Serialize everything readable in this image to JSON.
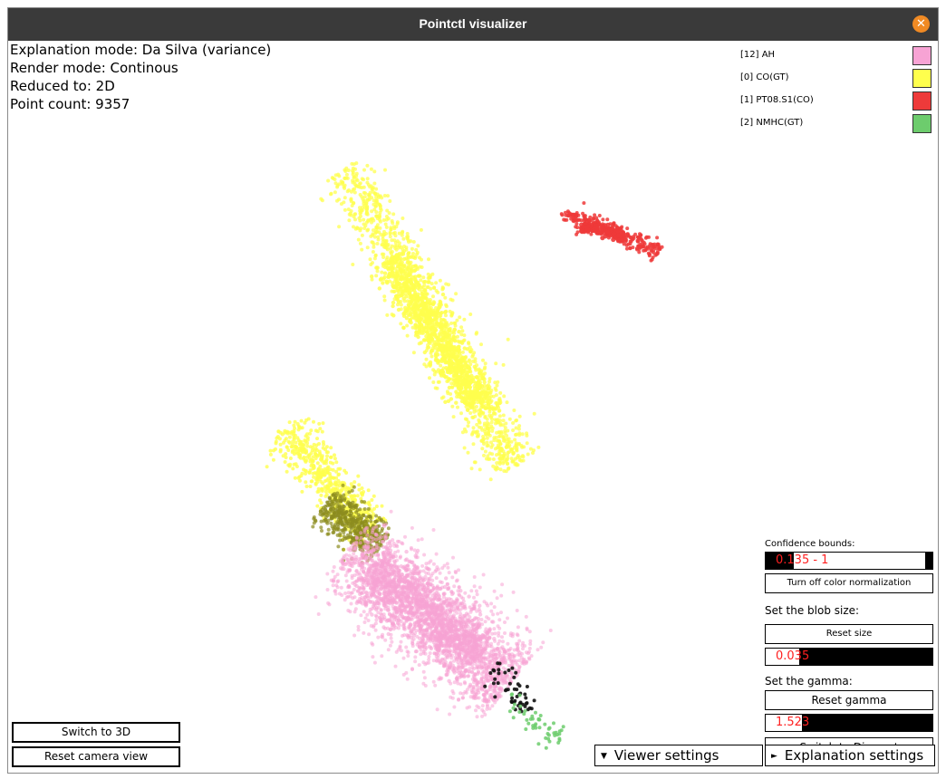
{
  "window": {
    "title": "Pointctl visualizer",
    "close_glyph": "✕"
  },
  "info": {
    "explanation_mode": "Explanation mode: Da Silva (variance)",
    "render_mode": "Render mode: Continous",
    "reduced_to": "Reduced to: 2D",
    "point_count": "Point count: 9357"
  },
  "legend": [
    {
      "label": "[12] AH",
      "color": "#f7a3d4"
    },
    {
      "label": "[0] CO(GT)",
      "color": "#ffff4d"
    },
    {
      "label": "[1] PT08.S1(CO)",
      "color": "#ee3a3a"
    },
    {
      "label": "[2] NMHC(GT)",
      "color": "#6dcc6d"
    }
  ],
  "panel": {
    "confidence_label": "Confidence bounds:",
    "confidence_value": "0.135 - 1",
    "confidence_range": [
      0.135,
      1
    ],
    "color_norm_button": "Turn off color normalization",
    "blob_label": "Set the blob size:",
    "reset_size_button": "Reset size",
    "blob_value": "0.035",
    "blob_fill": 0.2,
    "gamma_label": "Set the gamma:",
    "reset_gamma_button": "Reset gamma",
    "gamma_value": "1.523",
    "gamma_fill": 0.22,
    "switch_discreet_button": "Switch to Discreet"
  },
  "bottom": {
    "switch_3d": "Switch to 3D",
    "reset_camera": "Reset camera view",
    "viewer_settings": "Viewer settings",
    "explanation_settings": "Explanation settings",
    "viewer_icon": "triangle-down-icon",
    "explanation_icon": "triangle-right-icon"
  },
  "colors": {
    "yellow": "#ffff4d",
    "olive": "#8c8c1e",
    "pink": "#f7a3d4",
    "red": "#ee3a3a",
    "green": "#6dcc6d",
    "black": "#111111",
    "titlebar": "#3a3a3a",
    "close": "#f08a24",
    "slider_text": "#ff2020"
  }
}
